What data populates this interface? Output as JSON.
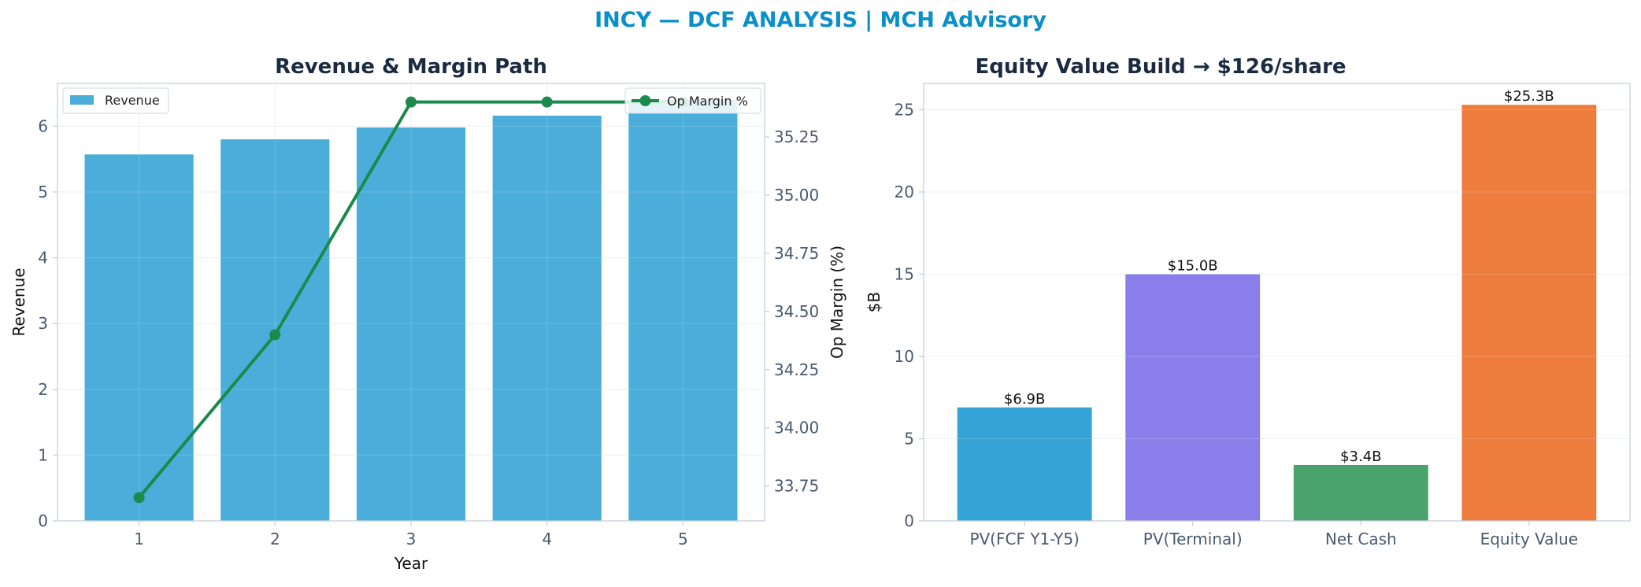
{
  "suptitle": "INCY — DCF ANALYSIS | MCH Advisory",
  "colors": {
    "suptitle": "#0a8fc9",
    "title": "#1b2a41",
    "tick": "#4a5a70",
    "axis_label": "#111111",
    "spine": "#c8d0da",
    "grid": "#e8ecf0",
    "revenue_bar": "#4badd9",
    "margin_line": "#1b8a4c"
  },
  "chart_data": [
    {
      "type": "bar",
      "title": "Revenue & Margin Path",
      "xlabel": "Year",
      "ylabel": "Revenue",
      "y2label": "Op Margin (%)",
      "categories": [
        "1",
        "2",
        "3",
        "4",
        "5"
      ],
      "ylim": [
        0,
        6.65
      ],
      "yticks": [
        0,
        1,
        2,
        3,
        4,
        5,
        6
      ],
      "y2lim": [
        33.6,
        35.48
      ],
      "y2ticks": [
        "33.75",
        "34.00",
        "34.25",
        "34.50",
        "34.75",
        "35.00",
        "35.25"
      ],
      "grid": true,
      "series": [
        {
          "name": "Revenue",
          "kind": "bar",
          "axis": "left",
          "values": [
            5.57,
            5.8,
            5.98,
            6.16,
            6.4
          ]
        },
        {
          "name": "Op Margin %",
          "kind": "line",
          "axis": "right",
          "values": [
            33.7,
            34.4,
            35.4,
            35.4,
            35.4
          ]
        }
      ],
      "legend": [
        {
          "label": "Revenue",
          "position": "top-left"
        },
        {
          "label": "Op Margin %",
          "position": "top-right"
        }
      ]
    },
    {
      "type": "bar",
      "title": "Equity Value Build → $126/share",
      "xlabel": "",
      "ylabel": "$B",
      "categories": [
        "PV(FCF Y1-Y5)",
        "PV(Terminal)",
        "Net Cash",
        "Equity Value"
      ],
      "values": [
        6.9,
        15.0,
        3.4,
        25.3
      ],
      "data_labels": [
        "$6.9B",
        "$15.0B",
        "$3.4B",
        "$25.3B"
      ],
      "bar_colors": [
        "#34a3d5",
        "#8b7eeb",
        "#4aa26c",
        "#ed7c3d"
      ],
      "ylim": [
        0,
        26.6
      ],
      "yticks": [
        0,
        5,
        10,
        15,
        20,
        25
      ],
      "grid": true
    }
  ]
}
